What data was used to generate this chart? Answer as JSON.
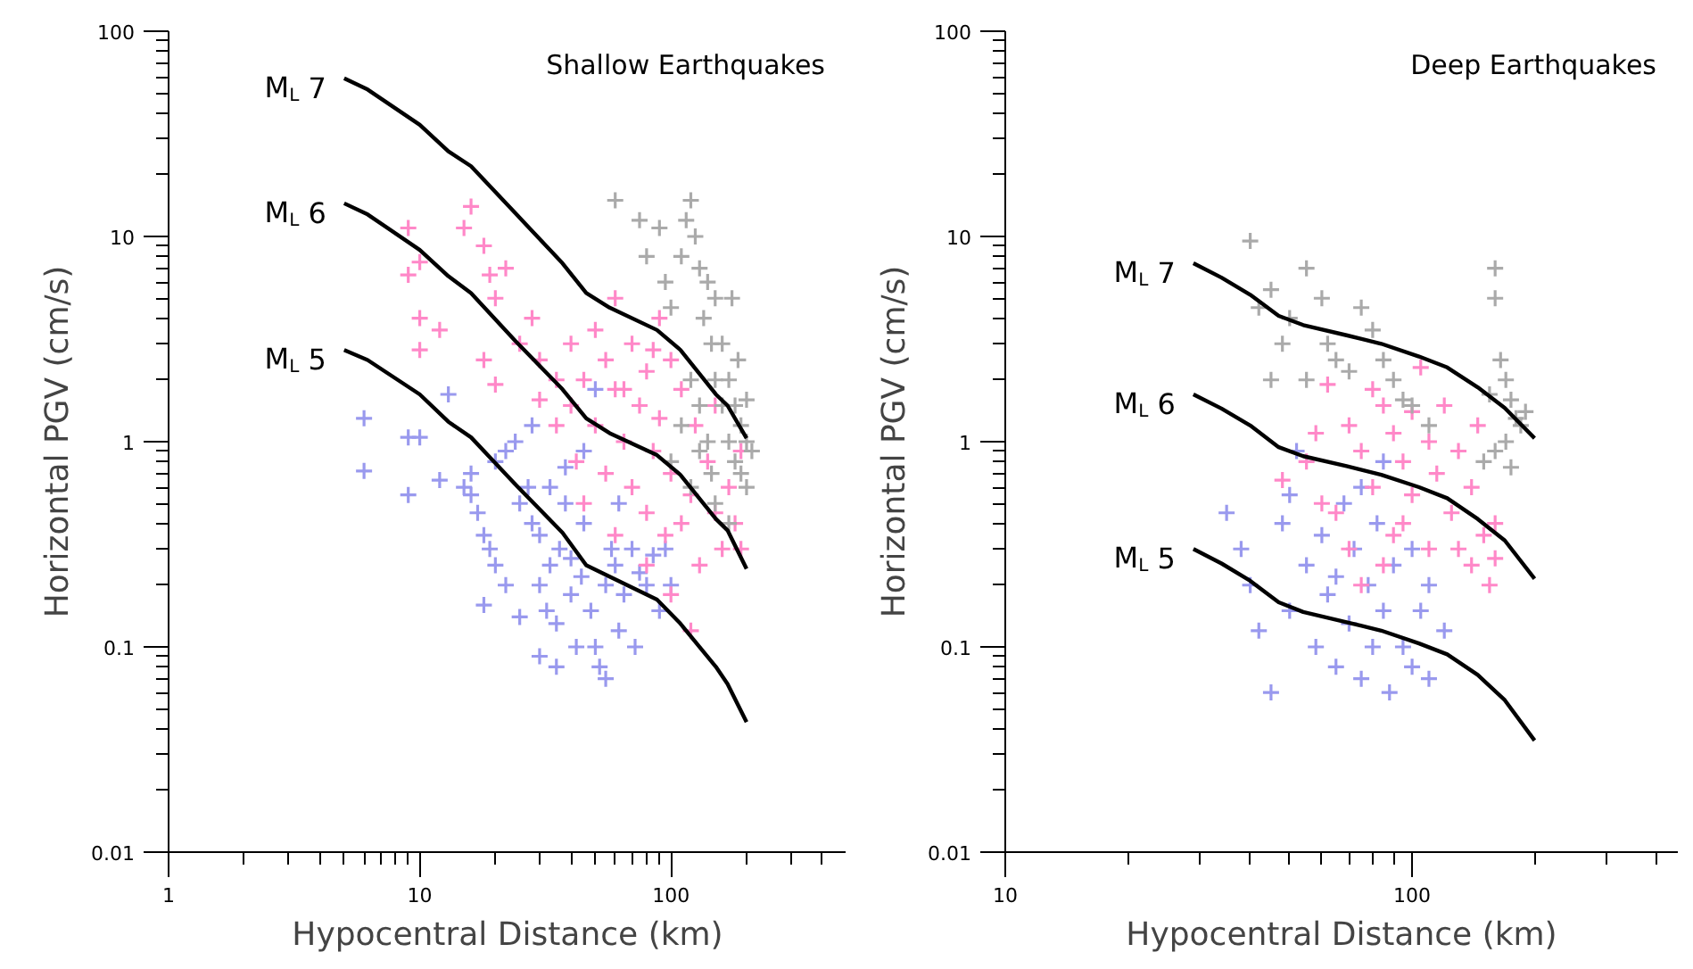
{
  "chart_data": [
    {
      "type": "scatter",
      "title": "Shallow Earthquakes",
      "xlabel": "Hypocentral Distance (km)",
      "ylabel": "Horizontal PGV (cm/s)",
      "log": "xy",
      "grid": false,
      "marker": "cross",
      "xlim": [
        1,
        500
      ],
      "ylim": [
        0.01,
        100
      ],
      "xticks": [
        1,
        10,
        100
      ],
      "yticks": [
        0.01,
        0.1,
        1,
        10,
        100
      ],
      "series": [
        {
          "color": "#9999ee",
          "x": [
            6,
            6,
            9,
            9,
            10,
            13,
            12,
            15,
            16,
            17,
            18,
            19,
            20,
            16,
            20,
            22,
            24,
            25,
            27,
            28,
            30,
            30,
            32,
            33,
            35,
            36,
            38,
            40,
            42,
            44,
            45,
            48,
            50,
            52,
            55,
            58,
            60,
            62,
            65,
            70,
            75,
            80,
            85,
            90,
            72,
            30,
            35,
            55,
            25,
            22,
            38,
            45,
            50,
            28,
            62,
            100,
            95,
            18,
            40,
            33
          ],
          "values": [
            1.3,
            0.72,
            1.05,
            0.55,
            1.05,
            1.7,
            0.65,
            0.6,
            0.55,
            0.45,
            0.35,
            0.3,
            0.25,
            0.7,
            0.8,
            0.9,
            1.0,
            0.5,
            0.6,
            0.4,
            0.35,
            0.2,
            0.15,
            0.25,
            0.13,
            0.3,
            0.5,
            0.18,
            0.1,
            0.22,
            0.4,
            0.15,
            0.1,
            0.08,
            0.2,
            0.3,
            0.25,
            0.12,
            0.18,
            0.3,
            0.23,
            0.2,
            0.28,
            0.15,
            0.1,
            0.09,
            0.08,
            0.07,
            0.14,
            0.2,
            0.75,
            0.9,
            1.8,
            1.2,
            0.5,
            0.2,
            0.3,
            0.16,
            0.27,
            0.6
          ]
        },
        {
          "color": "#ff88c8",
          "x": [
            9,
            9,
            10,
            10,
            10,
            12,
            16,
            15,
            18,
            19,
            20,
            22,
            18,
            20,
            25,
            28,
            30,
            30,
            35,
            35,
            40,
            40,
            42,
            45,
            50,
            50,
            55,
            55,
            60,
            60,
            65,
            70,
            70,
            75,
            80,
            80,
            85,
            90,
            90,
            95,
            100,
            100,
            110,
            110,
            120,
            125,
            130,
            140,
            150,
            150,
            160,
            170,
            180,
            190,
            120,
            80,
            100,
            60,
            45,
            190,
            65,
            85
          ],
          "values": [
            11,
            6.5,
            7.5,
            4,
            2.8,
            3.5,
            14,
            11,
            9,
            6.5,
            5,
            7,
            2.5,
            1.9,
            3,
            4,
            2.5,
            1.6,
            2,
            1.2,
            3,
            1.5,
            0.8,
            2,
            3.5,
            1.2,
            0.7,
            2.5,
            1.8,
            5,
            1,
            3,
            0.6,
            1.5,
            2.2,
            0.45,
            0.9,
            4,
            1.3,
            0.35,
            2.5,
            0.7,
            1.8,
            0.4,
            0.55,
            1.2,
            0.25,
            0.8,
            0.45,
            1.5,
            0.3,
            0.6,
            0.4,
            0.3,
            0.12,
            0.25,
            0.18,
            0.35,
            0.5,
            0.9,
            1.8,
            2.8
          ]
        },
        {
          "color": "#aaaaaa",
          "x": [
            60,
            75,
            80,
            90,
            95,
            100,
            110,
            115,
            120,
            125,
            130,
            135,
            140,
            145,
            150,
            150,
            160,
            160,
            170,
            170,
            180,
            180,
            190,
            190,
            200,
            200,
            210,
            130,
            140,
            120,
            110,
            100,
            150,
            170,
            120,
            200,
            175,
            185,
            130,
            145
          ],
          "values": [
            15,
            12,
            8,
            11,
            6,
            4.5,
            8,
            12,
            15,
            10,
            7,
            4,
            6,
            3,
            5,
            2,
            3,
            1.5,
            2,
            1,
            1.5,
            0.8,
            1.2,
            0.7,
            1,
            0.6,
            0.9,
            1.5,
            1,
            2,
            1.2,
            0.8,
            0.5,
            0.4,
            0.6,
            1.6,
            5,
            2.5,
            0.9,
            0.7
          ]
        },
        {
          "type": "line",
          "name": "M$_{L}$ 7",
          "color": "#000000",
          "marker": "none",
          "line_style": "solid",
          "x": [
            5,
            6.2,
            10,
            13,
            16,
            24,
            37,
            46,
            57,
            88,
            109,
            151,
            168,
            200
          ],
          "values": [
            59,
            52,
            35,
            26,
            22,
            13,
            7.4,
            5.3,
            4.5,
            3.5,
            2.8,
            1.7,
            1.5,
            1.04
          ]
        },
        {
          "type": "line",
          "name": "M$_{L}$ 6",
          "color": "#000000",
          "marker": "none",
          "line_style": "solid",
          "x": [
            5,
            6.2,
            10,
            13,
            16,
            24,
            37,
            46,
            57,
            88,
            109,
            151,
            168,
            200
          ],
          "values": [
            14.5,
            12.8,
            8.6,
            6.4,
            5.3,
            3.1,
            1.8,
            1.3,
            1.1,
            0.86,
            0.69,
            0.42,
            0.37,
            0.24
          ]
        },
        {
          "type": "line",
          "name": "M$_{L}$ 5",
          "color": "#000000",
          "marker": "none",
          "line_style": "solid",
          "x": [
            5,
            6.2,
            10,
            13,
            16,
            24,
            37,
            46,
            57,
            88,
            109,
            151,
            168,
            200
          ],
          "values": [
            2.8,
            2.5,
            1.7,
            1.25,
            1.05,
            0.62,
            0.36,
            0.25,
            0.22,
            0.17,
            0.13,
            0.08,
            0.066,
            0.043
          ]
        }
      ]
    },
    {
      "type": "scatter",
      "title": "Deep Earthquakes",
      "xlabel": "Hypocentral Distance (km)",
      "ylabel": "Horizontal PGV (cm/s)",
      "log": "xy",
      "grid": false,
      "marker": "cross",
      "xlim": [
        10,
        450
      ],
      "ylim": [
        0.01,
        100
      ],
      "xticks": [
        10,
        100
      ],
      "yticks": [
        0.01,
        0.1,
        1,
        10,
        100
      ],
      "series": [
        {
          "color": "#9999ee",
          "x": [
            35,
            38,
            40,
            42,
            45,
            48,
            50,
            52,
            55,
            58,
            60,
            62,
            65,
            68,
            70,
            72,
            75,
            78,
            80,
            82,
            85,
            88,
            90,
            95,
            100,
            100,
            105,
            110,
            110,
            120,
            75,
            85,
            50,
            65
          ],
          "values": [
            0.45,
            0.3,
            0.2,
            0.12,
            0.06,
            0.4,
            0.15,
            0.9,
            0.25,
            0.1,
            0.35,
            0.18,
            0.08,
            0.5,
            0.13,
            0.3,
            0.07,
            0.2,
            0.1,
            0.4,
            0.15,
            0.06,
            0.25,
            0.1,
            0.08,
            0.3,
            0.15,
            0.2,
            0.07,
            0.12,
            0.6,
            0.8,
            0.55,
            0.22
          ]
        },
        {
          "color": "#ff88c8",
          "x": [
            48,
            55,
            60,
            62,
            70,
            75,
            80,
            80,
            85,
            90,
            95,
            100,
            100,
            110,
            115,
            120,
            125,
            130,
            140,
            150,
            160,
            160,
            155,
            140,
            130,
            90,
            85,
            70,
            65,
            105,
            95,
            75,
            110,
            145,
            58
          ],
          "values": [
            0.65,
            0.8,
            0.5,
            1.9,
            1.2,
            0.9,
            0.6,
            1.8,
            1.5,
            1.1,
            0.8,
            0.55,
            1.4,
            1.0,
            0.7,
            1.5,
            0.45,
            0.9,
            0.6,
            0.35,
            0.4,
            0.27,
            0.2,
            0.25,
            0.3,
            0.35,
            0.25,
            0.3,
            0.45,
            2.3,
            0.4,
            0.2,
            0.3,
            1.2,
            1.1
          ]
        },
        {
          "color": "#aaaaaa",
          "x": [
            40,
            42,
            45,
            48,
            50,
            55,
            60,
            62,
            65,
            70,
            75,
            80,
            85,
            90,
            95,
            55,
            45,
            160,
            160,
            165,
            170,
            175,
            180,
            170,
            160,
            150,
            175,
            185,
            155,
            190,
            100,
            110
          ],
          "values": [
            9.5,
            4.5,
            5.5,
            3,
            4,
            7,
            5,
            3,
            2.5,
            2.2,
            4.5,
            3.5,
            2.5,
            2,
            1.6,
            2,
            2,
            7,
            5,
            2.5,
            2,
            1.6,
            1.3,
            1,
            0.9,
            0.8,
            0.75,
            1.2,
            1.7,
            1.4,
            1.5,
            1.2
          ]
        },
        {
          "type": "line",
          "name": "M$_{L}$ 7",
          "color": "#000000",
          "marker": "none",
          "line_style": "solid",
          "x": [
            29,
            34,
            40,
            47,
            54,
            69,
            84,
            104,
            122,
            145,
            169,
            200
          ],
          "values": [
            7.4,
            6.3,
            5.2,
            4.1,
            3.7,
            3.3,
            3.0,
            2.6,
            2.3,
            1.84,
            1.46,
            1.04
          ]
        },
        {
          "type": "line",
          "name": "M$_{L}$ 6",
          "color": "#000000",
          "marker": "none",
          "line_style": "solid",
          "x": [
            29,
            34,
            40,
            47,
            54,
            69,
            84,
            104,
            122,
            145,
            169,
            200
          ],
          "values": [
            1.7,
            1.45,
            1.2,
            0.94,
            0.85,
            0.76,
            0.69,
            0.6,
            0.53,
            0.42,
            0.33,
            0.215
          ]
        },
        {
          "type": "line",
          "name": "M$_{L}$ 5",
          "color": "#000000",
          "marker": "none",
          "line_style": "solid",
          "x": [
            29,
            34,
            40,
            47,
            54,
            69,
            84,
            104,
            122,
            145,
            169,
            200
          ],
          "values": [
            0.3,
            0.255,
            0.21,
            0.165,
            0.148,
            0.132,
            0.12,
            0.104,
            0.092,
            0.073,
            0.055,
            0.035
          ]
        }
      ]
    }
  ]
}
